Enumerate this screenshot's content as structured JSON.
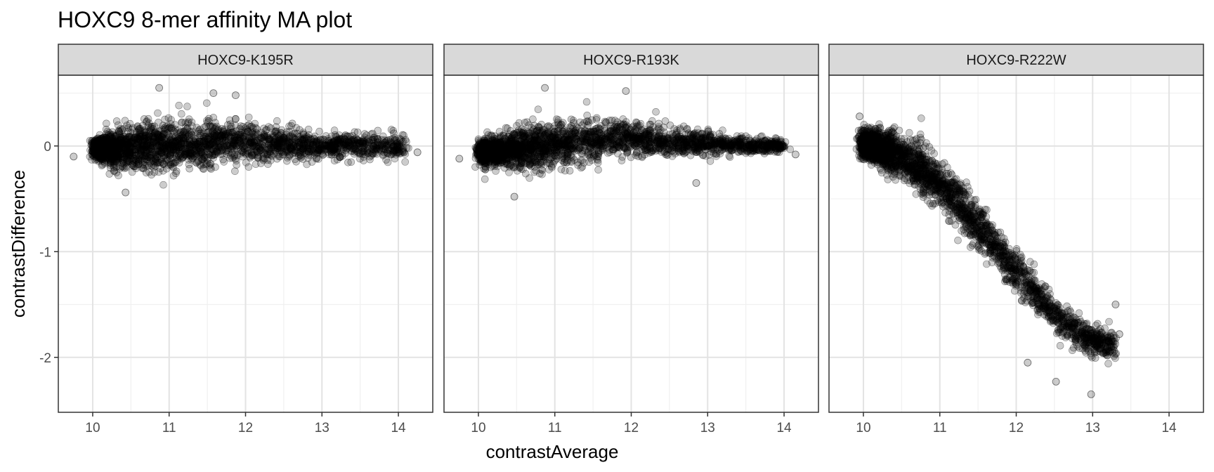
{
  "chart_data": {
    "type": "scatter",
    "title": "HOXC9 8-mer affinity MA plot",
    "xlabel": "contrastAverage",
    "ylabel": "contrastDifference",
    "xlim": [
      9.55,
      14.45
    ],
    "ylim": [
      -2.52,
      0.67
    ],
    "x_ticks": [
      10,
      11,
      12,
      13,
      14
    ],
    "y_ticks": [
      0,
      -1,
      -2
    ],
    "y_tick_labels": [
      "0",
      "-1",
      "-2"
    ],
    "grid": true,
    "point_color": "#000000",
    "point_alpha": 0.2,
    "facets": [
      {
        "label": "HOXC9-K195R",
        "trend": [
          [
            10.05,
            -0.03
          ],
          [
            10.5,
            -0.02
          ],
          [
            11.0,
            0.0
          ],
          [
            11.5,
            0.02
          ],
          [
            12.0,
            0.02
          ],
          [
            12.5,
            0.01
          ],
          [
            13.0,
            0.0
          ],
          [
            13.5,
            0.0
          ],
          [
            14.1,
            0.0
          ]
        ],
        "spread": [
          [
            10.05,
            0.1
          ],
          [
            10.3,
            0.18
          ],
          [
            10.7,
            0.22
          ],
          [
            11.2,
            0.23
          ],
          [
            11.8,
            0.2
          ],
          [
            12.3,
            0.16
          ],
          [
            12.8,
            0.12
          ],
          [
            13.2,
            0.1
          ],
          [
            13.6,
            0.12
          ],
          [
            14.1,
            0.12
          ]
        ],
        "outliers": [
          [
            11.87,
            0.48
          ],
          [
            10.87,
            0.55
          ],
          [
            11.58,
            0.5
          ],
          [
            9.75,
            -0.1
          ],
          [
            10.43,
            -0.44
          ],
          [
            14.25,
            -0.06
          ]
        ]
      },
      {
        "label": "HOXC9-R193K",
        "trend": [
          [
            10.05,
            -0.06
          ],
          [
            10.5,
            -0.03
          ],
          [
            11.0,
            0.01
          ],
          [
            11.5,
            0.06
          ],
          [
            12.0,
            0.07
          ],
          [
            12.5,
            0.05
          ],
          [
            13.0,
            0.02
          ],
          [
            13.5,
            0.0
          ],
          [
            14.0,
            0.0
          ]
        ],
        "spread": [
          [
            10.05,
            0.1
          ],
          [
            10.4,
            0.17
          ],
          [
            10.8,
            0.2
          ],
          [
            11.3,
            0.2
          ],
          [
            11.8,
            0.17
          ],
          [
            12.3,
            0.14
          ],
          [
            12.8,
            0.11
          ],
          [
            13.3,
            0.08
          ],
          [
            14.0,
            0.06
          ]
        ],
        "outliers": [
          [
            10.87,
            0.55
          ],
          [
            11.93,
            0.52
          ],
          [
            10.47,
            -0.48
          ],
          [
            12.85,
            -0.35
          ],
          [
            9.75,
            -0.12
          ],
          [
            14.15,
            -0.08
          ]
        ]
      },
      {
        "label": "HOXC9-R222W",
        "trend": [
          [
            10.0,
            0.02
          ],
          [
            10.3,
            -0.04
          ],
          [
            10.6,
            -0.14
          ],
          [
            10.9,
            -0.3
          ],
          [
            11.2,
            -0.5
          ],
          [
            11.5,
            -0.75
          ],
          [
            11.8,
            -1.02
          ],
          [
            12.1,
            -1.28
          ],
          [
            12.4,
            -1.52
          ],
          [
            12.7,
            -1.7
          ],
          [
            13.0,
            -1.85
          ],
          [
            13.3,
            -1.9
          ]
        ],
        "spread": [
          [
            10.0,
            0.12
          ],
          [
            10.4,
            0.2
          ],
          [
            10.8,
            0.23
          ],
          [
            11.2,
            0.22
          ],
          [
            11.6,
            0.2
          ],
          [
            12.0,
            0.18
          ],
          [
            12.4,
            0.16
          ],
          [
            12.8,
            0.15
          ],
          [
            13.3,
            0.15
          ]
        ],
        "outliers": [
          [
            9.95,
            0.28
          ],
          [
            12.98,
            -2.35
          ],
          [
            12.52,
            -2.23
          ],
          [
            13.22,
            -1.95
          ],
          [
            13.35,
            -1.78
          ],
          [
            13.3,
            -1.5
          ],
          [
            12.15,
            -2.05
          ]
        ]
      }
    ]
  }
}
